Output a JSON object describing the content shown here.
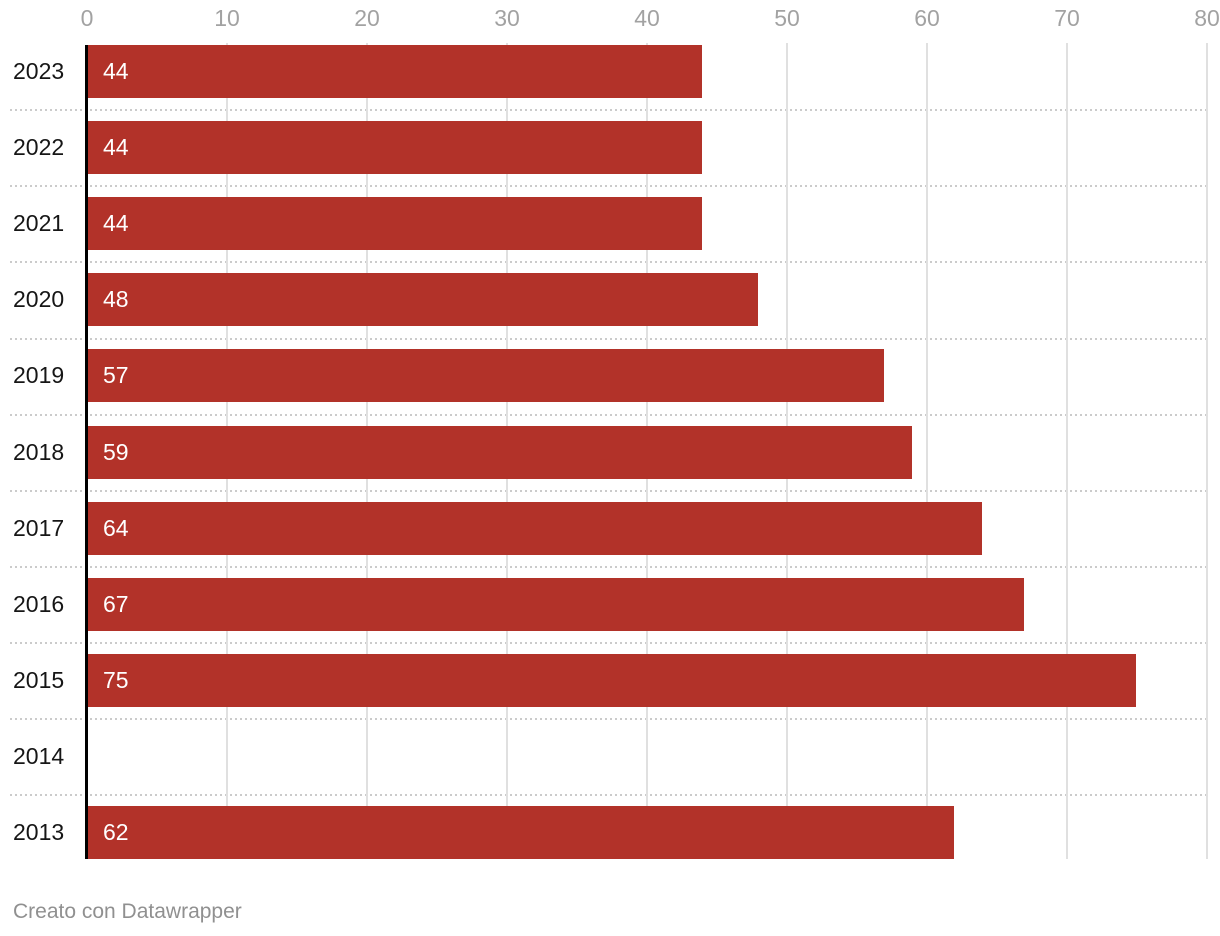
{
  "chart_data": {
    "type": "bar",
    "orientation": "horizontal",
    "title": "",
    "categories": [
      "2023",
      "2022",
      "2021",
      "2020",
      "2019",
      "2018",
      "2017",
      "2016",
      "2015",
      "2014",
      "2013"
    ],
    "values": [
      44,
      44,
      44,
      48,
      57,
      59,
      64,
      67,
      75,
      null,
      62
    ],
    "value_labels": [
      "44",
      "44",
      "44",
      "48",
      "57",
      "59",
      "64",
      "67",
      "75",
      "",
      "62"
    ],
    "xlim": [
      0,
      80
    ],
    "x_ticks": [
      "0",
      "10",
      "20",
      "30",
      "40",
      "50",
      "60",
      "70",
      "80"
    ],
    "grid": true,
    "legend": null,
    "axis_position": "top",
    "colors": {
      "bar": "#b23229",
      "value_label": "#ffffff",
      "category_label": "#161616",
      "tick_label": "#a2a2a2",
      "gridline": "#e0e0e0",
      "separator": "#cbcbcb",
      "axis_line": "#000000",
      "background": "#ffffff",
      "footer_text": "#909090"
    }
  },
  "footer": {
    "credit": "Creato con Datawrapper"
  }
}
